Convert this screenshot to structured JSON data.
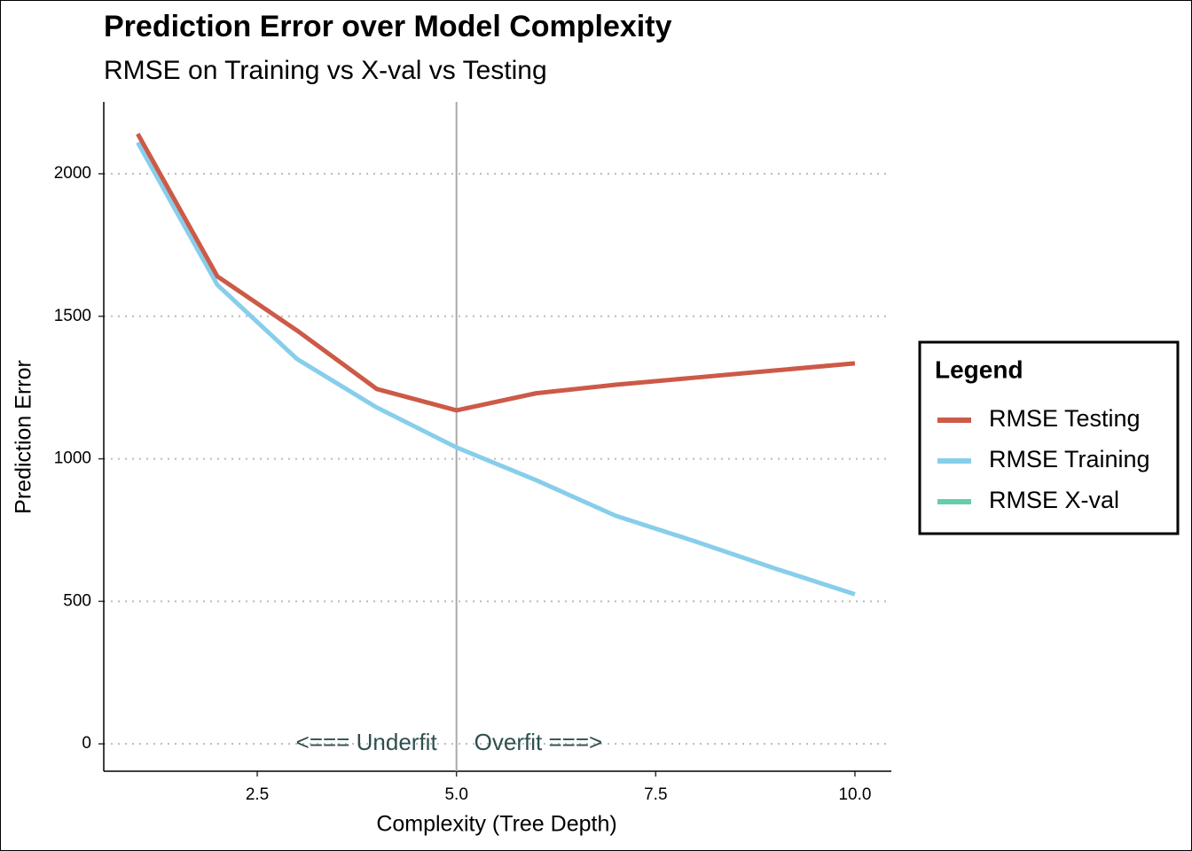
{
  "chart_data": {
    "type": "line",
    "title": "Prediction Error over Model Complexity",
    "subtitle": "RMSE on Training vs X-val vs Testing",
    "x_label": "Complexity (Tree Depth)",
    "y_label": "Prediction Error",
    "x": [
      1,
      2,
      3,
      4,
      5,
      6,
      7,
      8,
      9,
      10
    ],
    "series": [
      {
        "name": "RMSE Testing",
        "color": "#cc5a47",
        "values": [
          2140,
          1640,
          1450,
          1245,
          1170,
          1230,
          1260,
          1285,
          1310,
          1335
        ]
      },
      {
        "name": "RMSE Training",
        "color": "#87ceeb",
        "values": [
          2110,
          1610,
          1350,
          1180,
          1040,
          925,
          800,
          710,
          615,
          525
        ]
      },
      {
        "name": "RMSE X-val",
        "color": "#66cdaa",
        "values": [
          null,
          null,
          null,
          null,
          null,
          null,
          null,
          null,
          null,
          null
        ]
      }
    ],
    "xlim": [
      0.574,
      10.457
    ],
    "ylim": [
      -96,
      2252
    ],
    "xticks": [
      2.5,
      {
        "value": 5,
        "label": "5.0"
      },
      7.5,
      {
        "value": 10,
        "label": "10.0"
      }
    ],
    "yticks": [
      0,
      500,
      1000,
      1500,
      2000
    ],
    "grid": true,
    "legend_title": "Legend",
    "legend_position": "right",
    "vline": 5,
    "annotations": [
      "<=== Underfit",
      "Overfit ===>"
    ]
  }
}
